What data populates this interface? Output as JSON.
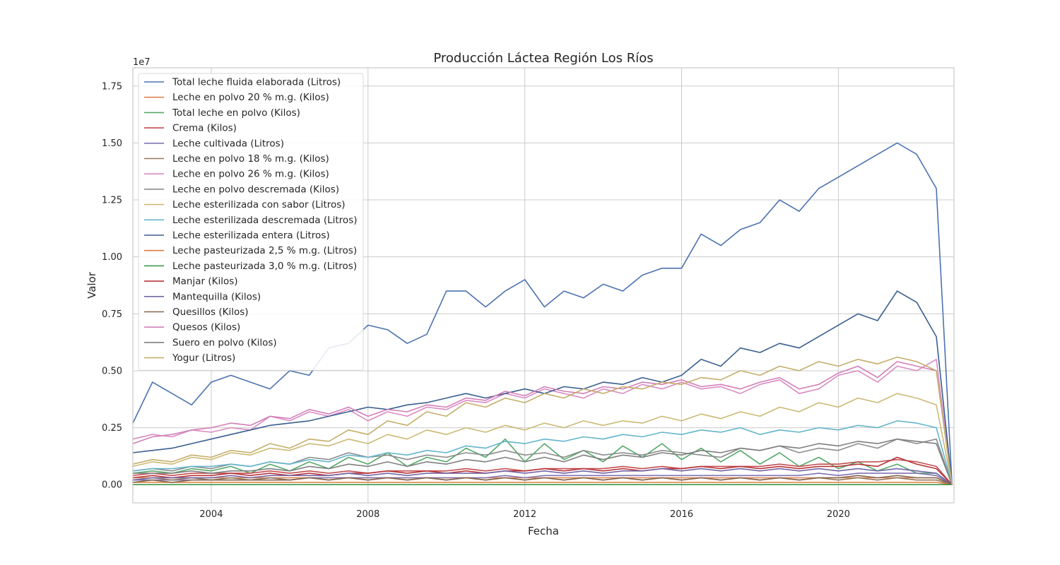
{
  "chart_data": {
    "type": "line",
    "title": "Producción Láctea Región Los Ríos",
    "xlabel": "Fecha",
    "ylabel": "Valor",
    "y_offset_label": "1e7",
    "y_scale_factor": 10000000,
    "xlim": [
      2002.0,
      2022.95
    ],
    "ylim": [
      -0.08,
      1.83
    ],
    "x_ticks": [
      2004,
      2008,
      2012,
      2016,
      2020
    ],
    "x_tick_labels": [
      "2004",
      "2008",
      "2012",
      "2016",
      "2020"
    ],
    "y_ticks": [
      0.0,
      0.25,
      0.5,
      0.75,
      1.0,
      1.25,
      1.5,
      1.75
    ],
    "y_tick_labels": [
      "0.00",
      "0.25",
      "0.50",
      "0.75",
      "1.00",
      "1.25",
      "1.50",
      "1.75"
    ],
    "grid": true,
    "legend_position": "upper-left",
    "x": [
      2002.0,
      2002.5,
      2003.0,
      2003.5,
      2004.0,
      2004.5,
      2005.0,
      2005.5,
      2006.0,
      2006.5,
      2007.0,
      2007.5,
      2008.0,
      2008.5,
      2009.0,
      2009.5,
      2010.0,
      2010.5,
      2011.0,
      2011.5,
      2012.0,
      2012.5,
      2013.0,
      2013.5,
      2014.0,
      2014.5,
      2015.0,
      2015.5,
      2016.0,
      2016.5,
      2017.0,
      2017.5,
      2018.0,
      2018.5,
      2019.0,
      2019.5,
      2020.0,
      2020.5,
      2021.0,
      2021.5,
      2022.0,
      2022.5,
      2022.9
    ],
    "series": [
      {
        "name": "Total leche fluida elaborada (Litros)",
        "color": "#4c72b0",
        "values": [
          0.27,
          0.45,
          0.4,
          0.35,
          0.45,
          0.48,
          0.45,
          0.42,
          0.5,
          0.48,
          0.6,
          0.62,
          0.7,
          0.68,
          0.62,
          0.66,
          0.85,
          0.85,
          0.78,
          0.85,
          0.9,
          0.78,
          0.85,
          0.82,
          0.88,
          0.85,
          0.92,
          0.95,
          0.95,
          1.1,
          1.05,
          1.12,
          1.15,
          1.25,
          1.2,
          1.3,
          1.35,
          1.4,
          1.45,
          1.5,
          1.45,
          1.3,
          0.0
        ]
      },
      {
        "name": "Leche en polvo 20 % m.g. (Kilos)",
        "color": "#dd8452",
        "values": [
          0.03,
          0.03,
          0.03,
          0.03,
          0.03,
          0.03,
          0.03,
          0.03,
          0.03,
          0.03,
          0.03,
          0.03,
          0.03,
          0.03,
          0.03,
          0.03,
          0.03,
          0.03,
          0.03,
          0.03,
          0.03,
          0.03,
          0.03,
          0.03,
          0.03,
          0.03,
          0.03,
          0.03,
          0.03,
          0.03,
          0.03,
          0.03,
          0.03,
          0.03,
          0.03,
          0.03,
          0.03,
          0.03,
          0.03,
          0.03,
          0.03,
          0.03,
          0.0
        ]
      },
      {
        "name": "Total leche en polvo (Kilos)",
        "color": "#55a868",
        "values": [
          0.05,
          0.06,
          0.05,
          0.07,
          0.06,
          0.08,
          0.05,
          0.09,
          0.06,
          0.1,
          0.07,
          0.12,
          0.09,
          0.14,
          0.08,
          0.12,
          0.1,
          0.16,
          0.12,
          0.2,
          0.1,
          0.18,
          0.11,
          0.15,
          0.1,
          0.17,
          0.12,
          0.18,
          0.11,
          0.16,
          0.1,
          0.15,
          0.09,
          0.14,
          0.08,
          0.12,
          0.07,
          0.1,
          0.06,
          0.09,
          0.05,
          0.05,
          0.0
        ]
      },
      {
        "name": "Crema (Kilos)",
        "color": "#c44e52",
        "values": [
          0.04,
          0.05,
          0.04,
          0.05,
          0.05,
          0.05,
          0.05,
          0.06,
          0.05,
          0.06,
          0.05,
          0.06,
          0.05,
          0.06,
          0.06,
          0.06,
          0.06,
          0.07,
          0.06,
          0.07,
          0.06,
          0.07,
          0.07,
          0.07,
          0.07,
          0.08,
          0.07,
          0.08,
          0.07,
          0.08,
          0.08,
          0.08,
          0.08,
          0.09,
          0.08,
          0.09,
          0.09,
          0.1,
          0.1,
          0.11,
          0.1,
          0.08,
          0.0
        ]
      },
      {
        "name": "Leche cultivada (Litros)",
        "color": "#8172b3",
        "values": [
          0.02,
          0.02,
          0.02,
          0.02,
          0.02,
          0.02,
          0.02,
          0.03,
          0.02,
          0.03,
          0.03,
          0.03,
          0.03,
          0.03,
          0.03,
          0.03,
          0.03,
          0.03,
          0.03,
          0.04,
          0.03,
          0.04,
          0.04,
          0.04,
          0.04,
          0.04,
          0.04,
          0.04,
          0.04,
          0.04,
          0.04,
          0.04,
          0.04,
          0.04,
          0.04,
          0.05,
          0.04,
          0.05,
          0.05,
          0.05,
          0.05,
          0.04,
          0.0
        ]
      },
      {
        "name": "Leche en polvo 18 % m.g. (Kilos)",
        "color": "#937860",
        "values": [
          0.02,
          0.03,
          0.02,
          0.03,
          0.02,
          0.03,
          0.02,
          0.03,
          0.02,
          0.03,
          0.02,
          0.03,
          0.02,
          0.03,
          0.02,
          0.03,
          0.02,
          0.03,
          0.02,
          0.03,
          0.02,
          0.03,
          0.02,
          0.03,
          0.02,
          0.03,
          0.02,
          0.03,
          0.02,
          0.03,
          0.02,
          0.03,
          0.02,
          0.03,
          0.02,
          0.03,
          0.02,
          0.03,
          0.02,
          0.03,
          0.02,
          0.02,
          0.0
        ]
      },
      {
        "name": "Leche en polvo 26 % m.g. (Kilos)",
        "color": "#da8bc3",
        "values": [
          0.2,
          0.22,
          0.21,
          0.24,
          0.23,
          0.25,
          0.24,
          0.3,
          0.28,
          0.32,
          0.3,
          0.33,
          0.28,
          0.32,
          0.3,
          0.34,
          0.33,
          0.37,
          0.36,
          0.4,
          0.38,
          0.42,
          0.4,
          0.38,
          0.42,
          0.4,
          0.44,
          0.42,
          0.45,
          0.42,
          0.43,
          0.4,
          0.44,
          0.46,
          0.4,
          0.42,
          0.48,
          0.5,
          0.45,
          0.52,
          0.5,
          0.55,
          0.0
        ]
      },
      {
        "name": "Leche en polvo descremada (Kilos)",
        "color": "#8c8c8c",
        "values": [
          0.06,
          0.07,
          0.06,
          0.08,
          0.07,
          0.09,
          0.08,
          0.1,
          0.09,
          0.12,
          0.11,
          0.14,
          0.12,
          0.13,
          0.11,
          0.13,
          0.12,
          0.14,
          0.13,
          0.15,
          0.13,
          0.14,
          0.12,
          0.15,
          0.13,
          0.14,
          0.13,
          0.15,
          0.14,
          0.13,
          0.12,
          0.16,
          0.15,
          0.17,
          0.14,
          0.16,
          0.15,
          0.18,
          0.16,
          0.2,
          0.18,
          0.2,
          0.0
        ]
      },
      {
        "name": "Leche esterilizada con sabor (Litros)",
        "color": "#ccb974",
        "values": [
          0.08,
          0.1,
          0.09,
          0.12,
          0.11,
          0.14,
          0.13,
          0.16,
          0.15,
          0.18,
          0.17,
          0.2,
          0.18,
          0.22,
          0.2,
          0.24,
          0.22,
          0.25,
          0.23,
          0.26,
          0.24,
          0.27,
          0.25,
          0.28,
          0.26,
          0.28,
          0.27,
          0.3,
          0.28,
          0.31,
          0.29,
          0.32,
          0.3,
          0.34,
          0.32,
          0.36,
          0.34,
          0.38,
          0.36,
          0.4,
          0.38,
          0.35,
          0.0
        ]
      },
      {
        "name": "Leche esterilizada descremada (Litros)",
        "color": "#64b5cd",
        "values": [
          0.06,
          0.07,
          0.07,
          0.08,
          0.08,
          0.09,
          0.08,
          0.1,
          0.09,
          0.11,
          0.1,
          0.13,
          0.12,
          0.14,
          0.13,
          0.15,
          0.14,
          0.17,
          0.16,
          0.19,
          0.18,
          0.2,
          0.19,
          0.21,
          0.2,
          0.22,
          0.21,
          0.23,
          0.22,
          0.24,
          0.23,
          0.25,
          0.22,
          0.24,
          0.23,
          0.25,
          0.24,
          0.26,
          0.25,
          0.28,
          0.27,
          0.25,
          0.0
        ]
      },
      {
        "name": "Leche esterilizada entera (Litros)",
        "color": "#3a5f8f",
        "values": [
          0.14,
          0.15,
          0.16,
          0.18,
          0.2,
          0.22,
          0.24,
          0.26,
          0.27,
          0.28,
          0.3,
          0.32,
          0.34,
          0.33,
          0.35,
          0.36,
          0.38,
          0.4,
          0.38,
          0.4,
          0.42,
          0.4,
          0.43,
          0.42,
          0.45,
          0.44,
          0.47,
          0.45,
          0.48,
          0.55,
          0.52,
          0.6,
          0.58,
          0.62,
          0.6,
          0.65,
          0.7,
          0.75,
          0.72,
          0.85,
          0.8,
          0.65,
          0.0
        ]
      },
      {
        "name": "Leche pasteurizada 2,5 % m.g. (Litros)",
        "color": "#e07b39",
        "values": [
          0.01,
          0.01,
          0.01,
          0.01,
          0.01,
          0.01,
          0.01,
          0.01,
          0.01,
          0.01,
          0.01,
          0.01,
          0.01,
          0.01,
          0.01,
          0.01,
          0.01,
          0.01,
          0.01,
          0.01,
          0.01,
          0.01,
          0.01,
          0.01,
          0.01,
          0.01,
          0.01,
          0.01,
          0.01,
          0.01,
          0.01,
          0.01,
          0.01,
          0.01,
          0.01,
          0.01,
          0.01,
          0.01,
          0.01,
          0.01,
          0.01,
          0.01,
          0.0
        ]
      },
      {
        "name": "Leche pasteurizada 3,0 % m.g. (Litros)",
        "color": "#3d9a4f",
        "values": [
          0.0,
          0.0,
          0.0,
          0.0,
          0.0,
          0.0,
          0.0,
          0.0,
          0.0,
          0.0,
          0.0,
          0.0,
          0.0,
          0.0,
          0.0,
          0.0,
          0.0,
          0.0,
          0.0,
          0.0,
          0.0,
          0.0,
          0.0,
          0.0,
          0.0,
          0.0,
          0.0,
          0.0,
          0.0,
          0.0,
          0.0,
          0.0,
          0.0,
          0.0,
          0.0,
          0.0,
          0.0,
          0.0,
          0.0,
          0.0,
          0.0,
          0.0,
          0.0
        ]
      },
      {
        "name": "Manjar (Kilos)",
        "color": "#b8363b",
        "values": [
          0.03,
          0.04,
          0.03,
          0.04,
          0.04,
          0.05,
          0.04,
          0.05,
          0.04,
          0.05,
          0.04,
          0.05,
          0.05,
          0.06,
          0.05,
          0.06,
          0.05,
          0.06,
          0.05,
          0.06,
          0.06,
          0.07,
          0.06,
          0.07,
          0.06,
          0.07,
          0.06,
          0.07,
          0.07,
          0.08,
          0.07,
          0.08,
          0.07,
          0.08,
          0.07,
          0.08,
          0.08,
          0.09,
          0.08,
          0.12,
          0.09,
          0.07,
          0.0
        ]
      },
      {
        "name": "Mantequilla (Kilos)",
        "color": "#7466a6",
        "values": [
          0.02,
          0.03,
          0.03,
          0.03,
          0.03,
          0.04,
          0.03,
          0.04,
          0.04,
          0.04,
          0.04,
          0.05,
          0.04,
          0.05,
          0.04,
          0.05,
          0.05,
          0.05,
          0.05,
          0.06,
          0.05,
          0.06,
          0.05,
          0.06,
          0.05,
          0.06,
          0.06,
          0.07,
          0.06,
          0.07,
          0.06,
          0.07,
          0.06,
          0.07,
          0.06,
          0.07,
          0.06,
          0.07,
          0.06,
          0.07,
          0.06,
          0.05,
          0.0
        ]
      },
      {
        "name": "Quesillos (Kilos)",
        "color": "#85664c",
        "values": [
          0.01,
          0.02,
          0.01,
          0.02,
          0.02,
          0.02,
          0.02,
          0.02,
          0.02,
          0.03,
          0.02,
          0.03,
          0.02,
          0.03,
          0.02,
          0.03,
          0.02,
          0.03,
          0.02,
          0.03,
          0.02,
          0.03,
          0.02,
          0.03,
          0.02,
          0.03,
          0.02,
          0.03,
          0.02,
          0.03,
          0.02,
          0.03,
          0.02,
          0.03,
          0.02,
          0.03,
          0.03,
          0.04,
          0.03,
          0.04,
          0.03,
          0.03,
          0.0
        ]
      },
      {
        "name": "Quesos (Kilos)",
        "color": "#d27fb8",
        "values": [
          0.18,
          0.21,
          0.22,
          0.24,
          0.25,
          0.27,
          0.26,
          0.3,
          0.29,
          0.33,
          0.31,
          0.34,
          0.3,
          0.33,
          0.32,
          0.35,
          0.34,
          0.38,
          0.37,
          0.41,
          0.39,
          0.43,
          0.41,
          0.4,
          0.43,
          0.42,
          0.45,
          0.44,
          0.46,
          0.43,
          0.44,
          0.42,
          0.45,
          0.47,
          0.42,
          0.44,
          0.49,
          0.52,
          0.47,
          0.54,
          0.52,
          0.5,
          0.0
        ]
      },
      {
        "name": "Suero en polvo (Kilos)",
        "color": "#7f7f7f",
        "values": [
          0.05,
          0.05,
          0.05,
          0.06,
          0.05,
          0.06,
          0.06,
          0.07,
          0.06,
          0.08,
          0.07,
          0.09,
          0.08,
          0.1,
          0.08,
          0.1,
          0.09,
          0.11,
          0.1,
          0.12,
          0.1,
          0.12,
          0.1,
          0.13,
          0.11,
          0.13,
          0.12,
          0.14,
          0.13,
          0.15,
          0.14,
          0.16,
          0.15,
          0.17,
          0.16,
          0.18,
          0.17,
          0.19,
          0.18,
          0.2,
          0.19,
          0.18,
          0.0
        ]
      },
      {
        "name": "Yogur (Litros)",
        "color": "#c4ae6b",
        "values": [
          0.09,
          0.11,
          0.1,
          0.13,
          0.12,
          0.15,
          0.14,
          0.18,
          0.16,
          0.2,
          0.19,
          0.24,
          0.22,
          0.28,
          0.26,
          0.32,
          0.3,
          0.36,
          0.34,
          0.38,
          0.36,
          0.4,
          0.38,
          0.42,
          0.4,
          0.43,
          0.42,
          0.45,
          0.44,
          0.47,
          0.46,
          0.5,
          0.48,
          0.52,
          0.5,
          0.54,
          0.52,
          0.55,
          0.53,
          0.56,
          0.54,
          0.5,
          0.0
        ]
      }
    ]
  }
}
